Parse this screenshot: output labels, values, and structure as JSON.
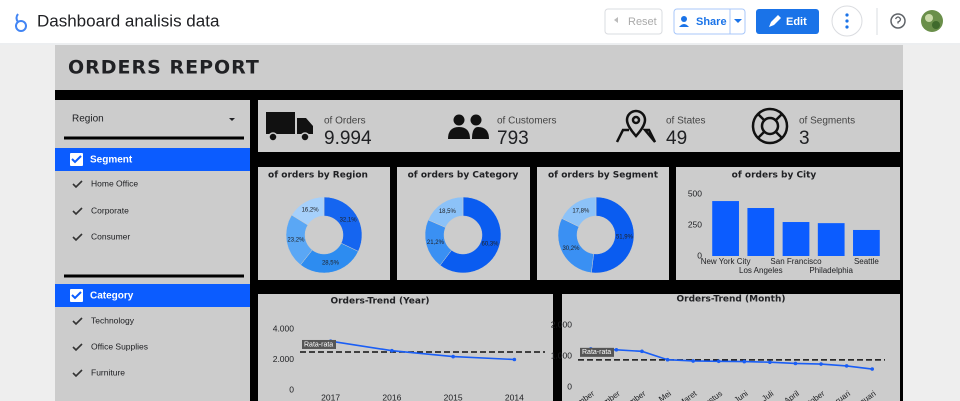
{
  "header": {
    "title": "Dashboard analisis data",
    "buttons": {
      "reset": "Reset",
      "share": "Share",
      "edit": "Edit"
    }
  },
  "report_title": "ORDERS REPORT",
  "filters": {
    "region": "Region",
    "groups": [
      {
        "title": "Segment",
        "items": [
          "Home Office",
          "Corporate",
          "Consumer"
        ]
      },
      {
        "title": "Category",
        "items": [
          "Technology",
          "Office Supplies",
          "Furniture"
        ]
      }
    ]
  },
  "kpis": [
    {
      "label": "of Orders",
      "value": "9.994"
    },
    {
      "label": "of Customers",
      "value": "793"
    },
    {
      "label": "of States",
      "value": "49"
    },
    {
      "label": "of Segments",
      "value": "3"
    }
  ],
  "chart_data": [
    {
      "type": "pie",
      "title": "of orders by Region",
      "values": [
        32.1,
        28.5,
        23.2,
        16.2
      ],
      "value_labels": [
        "32,1%",
        "28,5%",
        "23,2%",
        "16,2%"
      ],
      "colors": [
        "#1565f0",
        "#2d8cf0",
        "#5aa7f5",
        "#a6d0fb"
      ]
    },
    {
      "type": "pie",
      "title": "of orders by Category",
      "values": [
        60.3,
        21.2,
        18.5
      ],
      "value_labels": [
        "60,3%",
        "21,2%",
        "18,5%"
      ],
      "colors": [
        "#0a5cf0",
        "#3a90f3",
        "#8cc2f8"
      ]
    },
    {
      "type": "pie",
      "title": "of orders by Segment",
      "values": [
        51.9,
        30.2,
        17.8
      ],
      "value_labels": [
        "51,9%",
        "30,2%",
        "17,8%"
      ],
      "colors": [
        "#0a5cf0",
        "#3a90f3",
        "#8cc2f8"
      ]
    },
    {
      "type": "bar",
      "title": "of orders by City",
      "categories": [
        "New York City",
        "Los Angeles",
        "San Francisco",
        "Philadelphia",
        "Seattle"
      ],
      "values": [
        443,
        387,
        274,
        265,
        210
      ],
      "color": "#0b5cff",
      "ylim": [
        0,
        500
      ],
      "yticks": [
        0,
        250,
        500
      ]
    },
    {
      "type": "line",
      "title": "Orders-Trend (Year)",
      "categories": [
        "2017",
        "2016",
        "2015",
        "2014"
      ],
      "values": [
        3200,
        2580,
        2190,
        2000
      ],
      "color": "#1a5ef5",
      "ylim": [
        0,
        4000
      ],
      "yticks": [
        0,
        {
          "value": 2000,
          "label": "2.000"
        },
        {
          "value": 4000,
          "label": "4.000"
        }
      ],
      "reference_line": {
        "value": 2494,
        "label": "Rata-rata"
      }
    },
    {
      "type": "line",
      "title": "Orders-Trend (Month)",
      "categories": [
        "November",
        "September",
        "Desember",
        "Mei",
        "Maret",
        "Agustus",
        "Juni",
        "Juli",
        "April",
        "Oktober",
        "Februari",
        "Januari"
      ],
      "values": [
        1230,
        1200,
        1150,
        880,
        840,
        830,
        820,
        800,
        760,
        740,
        680,
        580
      ],
      "color": "#1a5ef5",
      "ylim": [
        0,
        2000
      ],
      "yticks": [
        0,
        {
          "value": 1000,
          "label": "1.000"
        },
        {
          "value": 2000,
          "label": "2.000"
        }
      ],
      "reference_line": {
        "value": 876,
        "label": "Rata-rata"
      }
    }
  ]
}
